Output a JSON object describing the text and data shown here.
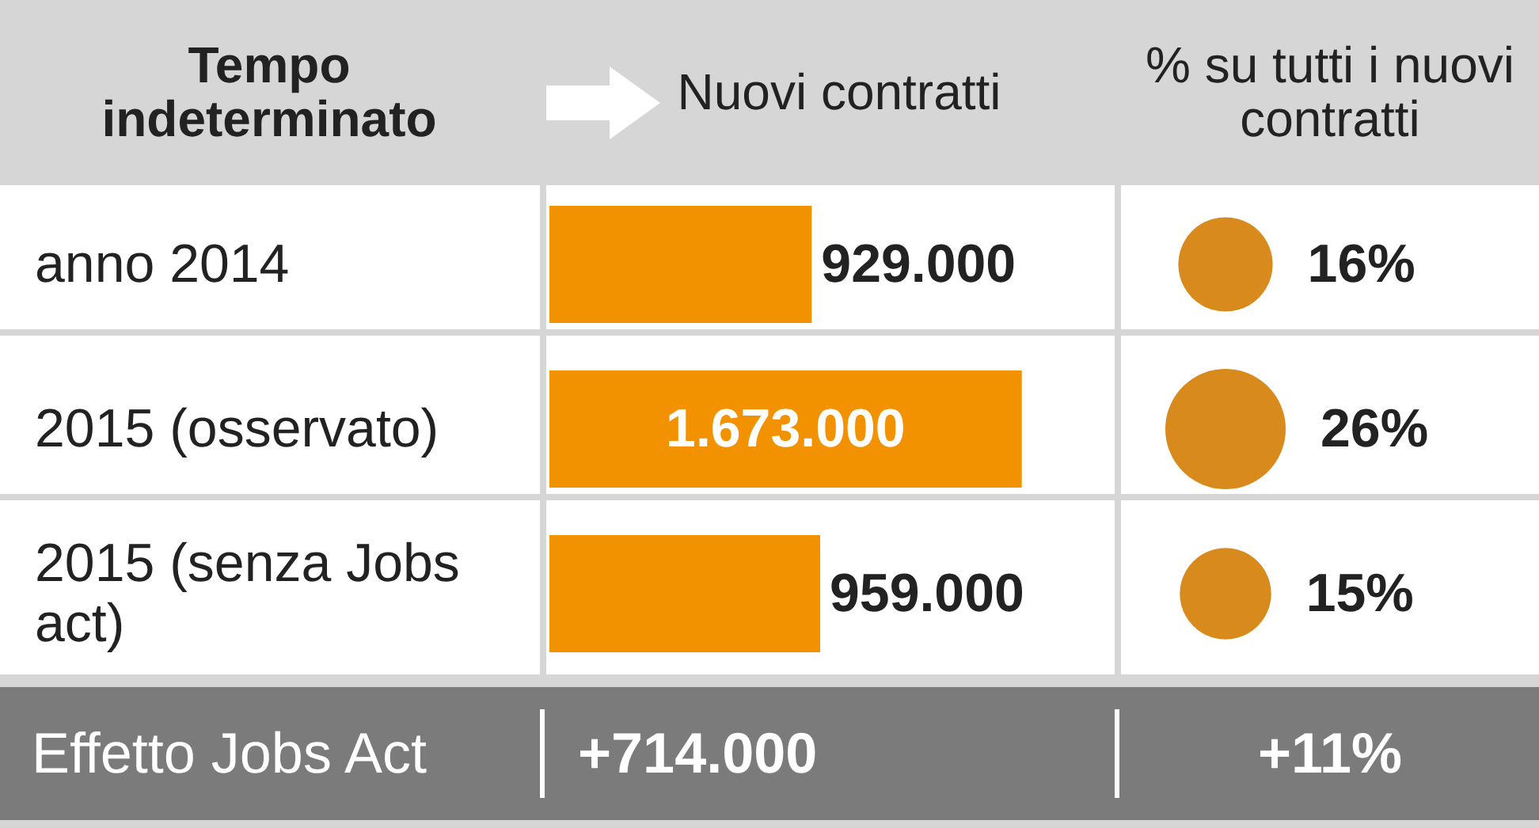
{
  "chart_data": [
    {
      "type": "bar",
      "orientation": "horizontal",
      "title": "Tempo indeterminato",
      "xlabel": "Nuovi contratti",
      "categories": [
        "anno 2014",
        "2015 (osservato)",
        "2015 (senza Jobs act)"
      ],
      "values": [
        929000,
        1673000,
        959000
      ],
      "color": "#f39200",
      "value_labels": [
        "929.000",
        "1.673.000",
        "959.000"
      ],
      "annotations": [
        "Effetto Jobs Act",
        "+714.000"
      ]
    },
    {
      "type": "other",
      "xlabel": "% su tutti i nuovi contratti",
      "categories": [
        null,
        null,
        null
      ],
      "values": [
        16,
        26,
        15
      ],
      "color": "#d98a1c",
      "value_labels": [
        "16%",
        "26%",
        "15%"
      ],
      "annotations": [
        "+11%"
      ]
    }
  ]
}
